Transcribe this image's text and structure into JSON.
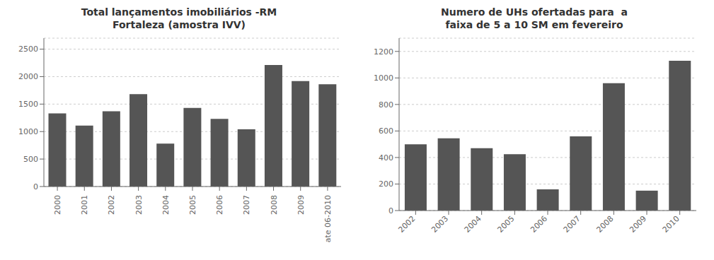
{
  "chart_data": [
    {
      "type": "bar",
      "title": "Total lançamentos imobiliários -RM\nFortaleza (amostra IVV)",
      "categories": [
        "2000",
        "2001",
        "2002",
        "2003",
        "2004",
        "2005",
        "2006",
        "2007",
        "2008",
        "2009",
        "ate 06-2010"
      ],
      "values": [
        1330,
        1110,
        1370,
        1680,
        780,
        1430,
        1230,
        1040,
        2210,
        1920,
        1860
      ],
      "color": "#555555",
      "ylim": [
        0,
        2700
      ],
      "yticks": [
        0,
        500,
        1000,
        1500,
        2000,
        2500
      ],
      "grid": true
    },
    {
      "type": "bar",
      "title": "Numero de UHs ofertadas para  a\nfaixa de 5 a 10 SM em fevereiro",
      "categories": [
        "2002",
        "2003",
        "2004",
        "2005",
        "2006",
        "2007",
        "2008",
        "2009",
        "2010"
      ],
      "values": [
        500,
        545,
        470,
        425,
        160,
        560,
        960,
        150,
        1130
      ],
      "color": "#555555",
      "ylim": [
        0,
        1300
      ],
      "yticks": [
        0,
        200,
        400,
        600,
        800,
        1000,
        1200
      ],
      "grid": true
    }
  ]
}
